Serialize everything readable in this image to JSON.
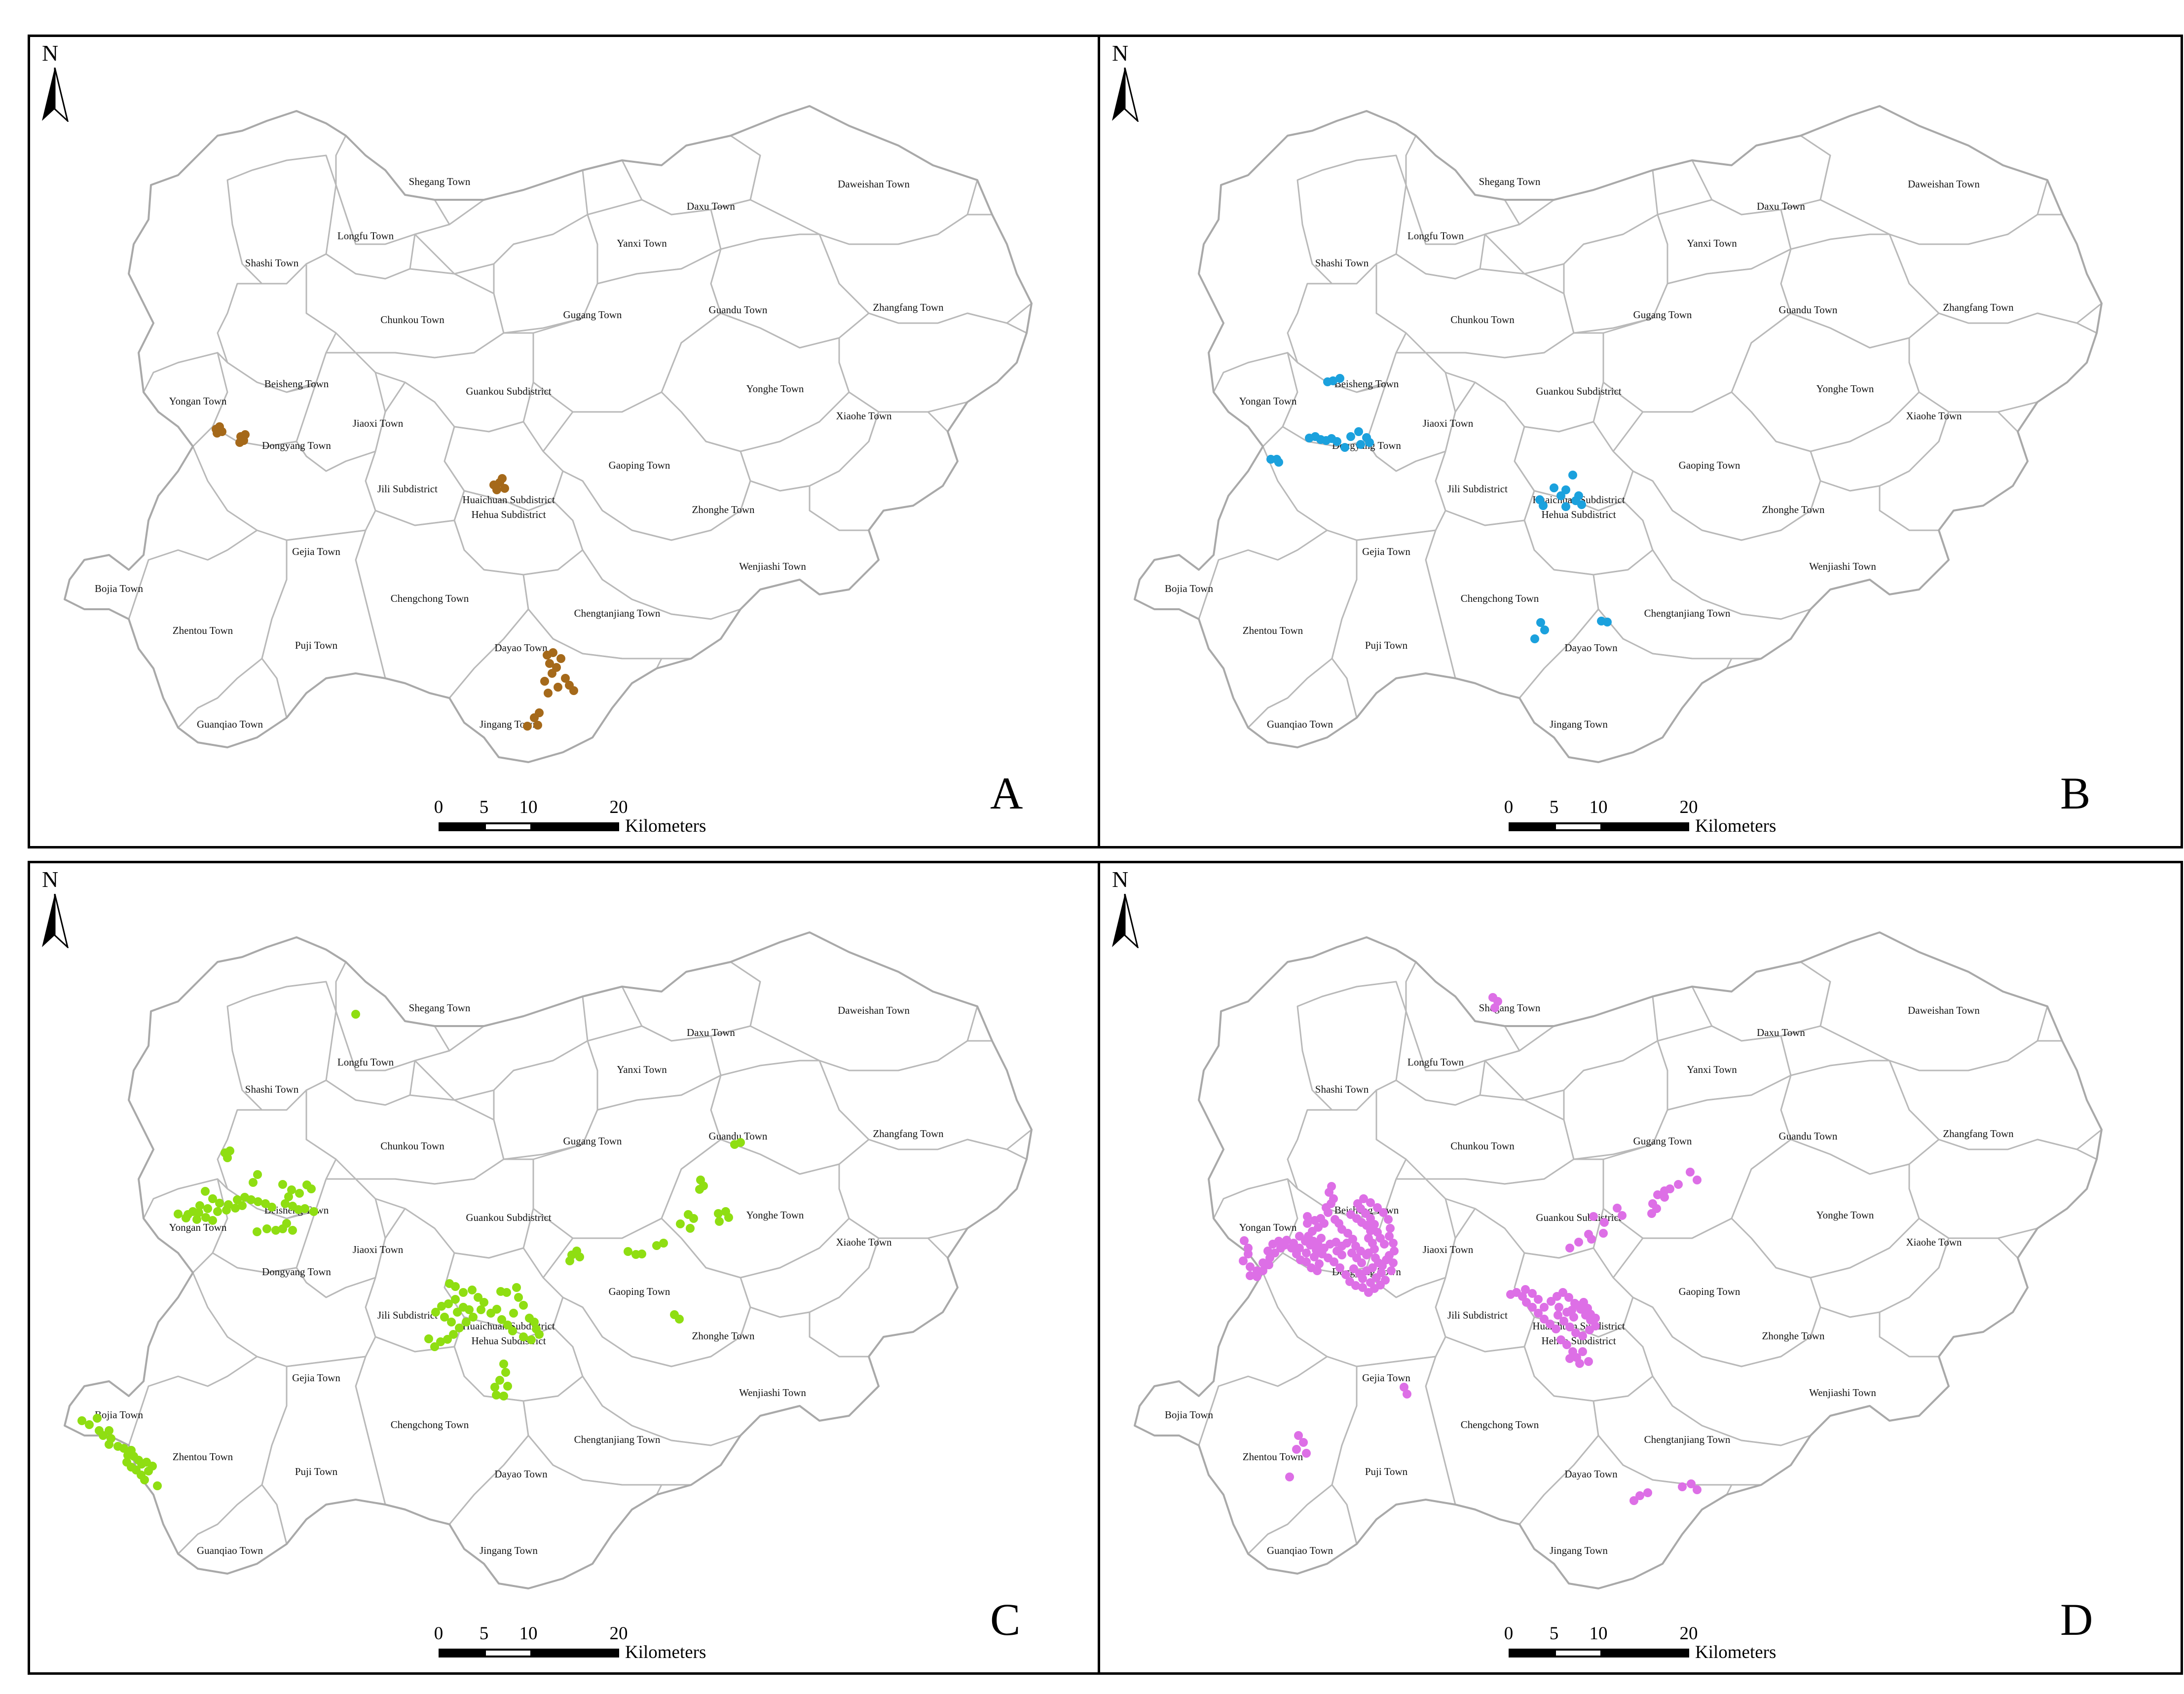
{
  "panels": [
    {
      "letter": "A",
      "dot_color": "#a5691a"
    },
    {
      "letter": "B",
      "dot_color": "#1ba1dd"
    },
    {
      "letter": "C",
      "dot_color": "#8fde12"
    },
    {
      "letter": "D",
      "dot_color": "#dd6fe6"
    }
  ],
  "north_label": "N",
  "scale": {
    "ticks": [
      "0",
      "5",
      "10",
      "20"
    ],
    "unit": "Kilometers"
  },
  "towns": [
    "Shegang Town",
    "Daweishan Town",
    "Daxu Town",
    "Longfu Town",
    "Shashi Town",
    "Yanxi Town",
    "Chunkou Town",
    "Gugang Town",
    "Guandu Town",
    "Zhangfang Town",
    "Beisheng Town",
    "Guankou Subdistrict",
    "Yonghe Town",
    "Yongan Town",
    "Jiaoxi Town",
    "Xiaohe Town",
    "Dongyang Town",
    "Gaoping Town",
    "Jili Subdistrict",
    "Huaichuan Subdistrict",
    "Hehua Subdistrict",
    "Zhonghe Town",
    "Gejia Town",
    "Bojia Town",
    "Wenjiashi Town",
    "Chengchong Town",
    "Chengtanjiang Town",
    "Zhentou Town",
    "Puji Town",
    "Dayao Town",
    "Jingang Town",
    "Guanqiao Town"
  ]
}
